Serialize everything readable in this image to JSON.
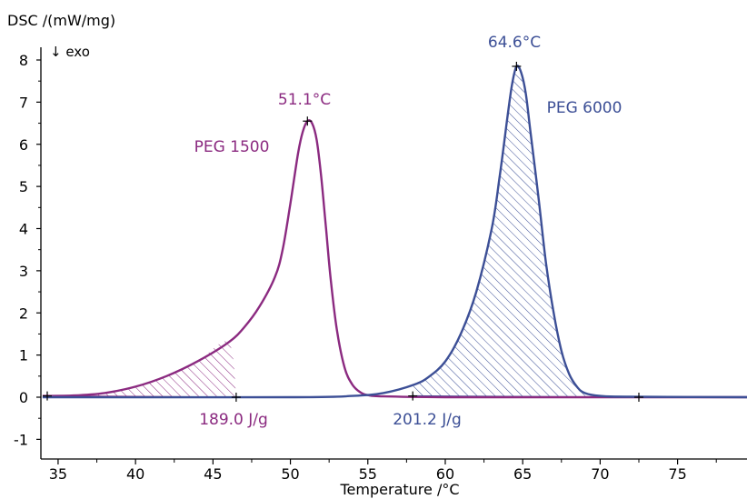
{
  "chart_data": {
    "type": "area",
    "ylabel": "DSC /(mW/mg)",
    "xlabel": "Temperature /°C",
    "direction_note": "↓ exo",
    "xlim": [
      34,
      79.5
    ],
    "ylim": [
      -1.1,
      8.25
    ],
    "xticks": [
      35,
      40,
      45,
      50,
      55,
      60,
      65,
      70,
      75
    ],
    "yticks": [
      8,
      7,
      6,
      5,
      4,
      3,
      2,
      1,
      0,
      -1
    ],
    "grid": false,
    "series": [
      {
        "name": "PEG 1500",
        "color": "#8b2a80",
        "peak_label": "51.1°C",
        "peak": [
          51.1,
          6.55
        ],
        "area_label": "189.0 J/g",
        "baseline_markers": [
          [
            34.3,
            0.03
          ],
          [
            46.5,
            0.0
          ]
        ],
        "points": [
          [
            34,
            0.03
          ],
          [
            36,
            0.04
          ],
          [
            38,
            0.1
          ],
          [
            40,
            0.25
          ],
          [
            42,
            0.5
          ],
          [
            44,
            0.85
          ],
          [
            46,
            1.3
          ],
          [
            47,
            1.65
          ],
          [
            48,
            2.15
          ],
          [
            49,
            2.85
          ],
          [
            49.5,
            3.5
          ],
          [
            50,
            4.6
          ],
          [
            50.5,
            5.8
          ],
          [
            50.8,
            6.3
          ],
          [
            51.1,
            6.55
          ],
          [
            51.4,
            6.5
          ],
          [
            51.7,
            6.1
          ],
          [
            52,
            5.2
          ],
          [
            52.3,
            4.0
          ],
          [
            52.6,
            2.8
          ],
          [
            53,
            1.6
          ],
          [
            53.5,
            0.7
          ],
          [
            54,
            0.3
          ],
          [
            54.5,
            0.12
          ],
          [
            55,
            0.05
          ],
          [
            56,
            0.02
          ],
          [
            60,
            0.0
          ],
          [
            70,
            0.0
          ],
          [
            79.5,
            0.0
          ]
        ]
      },
      {
        "name": "PEG 6000",
        "color": "#3c4f96",
        "peak_label": "64.6°C",
        "peak": [
          64.6,
          7.85
        ],
        "area_label": "201.2 J/g",
        "baseline_markers": [
          [
            57.9,
            0.03
          ],
          [
            72.5,
            0.0
          ]
        ],
        "points": [
          [
            34,
            0.0
          ],
          [
            50,
            0.0
          ],
          [
            54,
            0.03
          ],
          [
            56,
            0.1
          ],
          [
            58,
            0.3
          ],
          [
            59,
            0.5
          ],
          [
            60,
            0.85
          ],
          [
            61,
            1.5
          ],
          [
            62,
            2.5
          ],
          [
            63,
            4.0
          ],
          [
            63.5,
            5.2
          ],
          [
            64,
            6.6
          ],
          [
            64.3,
            7.4
          ],
          [
            64.6,
            7.85
          ],
          [
            64.9,
            7.7
          ],
          [
            65.2,
            7.2
          ],
          [
            65.5,
            6.3
          ],
          [
            66,
            4.8
          ],
          [
            66.5,
            3.2
          ],
          [
            67,
            2.0
          ],
          [
            67.5,
            1.1
          ],
          [
            68,
            0.55
          ],
          [
            68.5,
            0.25
          ],
          [
            69,
            0.1
          ],
          [
            70,
            0.03
          ],
          [
            72,
            0.01
          ],
          [
            79.5,
            0.0
          ]
        ]
      }
    ]
  }
}
